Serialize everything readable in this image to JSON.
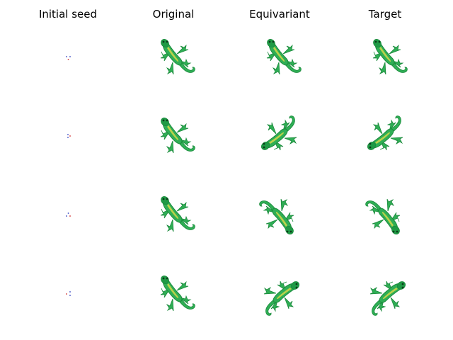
{
  "columns": [
    "Initial seed",
    "Original",
    "Equivariant",
    "Target"
  ],
  "colors": {
    "body_dark": "#1b8a3c",
    "body_mid": "#2fae55",
    "belly": "#c9d64a",
    "eye": "#0b3d1a",
    "seed_red": "#d03030",
    "seed_blue": "#3040c0"
  },
  "rows": [
    {
      "seed_icon": "seed-dots",
      "original": {
        "icon": "lizard-icon",
        "angle": 0
      },
      "equivariant": {
        "icon": "lizard-icon",
        "angle": 0
      },
      "target": {
        "icon": "lizard-icon",
        "angle": 0
      }
    },
    {
      "seed_icon": "seed-dots",
      "original": {
        "icon": "lizard-icon",
        "angle": 0
      },
      "equivariant": {
        "icon": "lizard-icon",
        "angle": -90
      },
      "target": {
        "icon": "lizard-icon",
        "angle": -90
      }
    },
    {
      "seed_icon": "seed-dots",
      "original": {
        "icon": "lizard-icon",
        "angle": 0
      },
      "equivariant": {
        "icon": "lizard-icon",
        "angle": 180
      },
      "target": {
        "icon": "lizard-icon",
        "angle": 180
      }
    },
    {
      "seed_icon": "seed-dots",
      "original": {
        "icon": "lizard-icon",
        "angle": 0
      },
      "equivariant": {
        "icon": "lizard-icon",
        "angle": 90
      },
      "target": {
        "icon": "lizard-icon",
        "angle": 90
      }
    }
  ]
}
